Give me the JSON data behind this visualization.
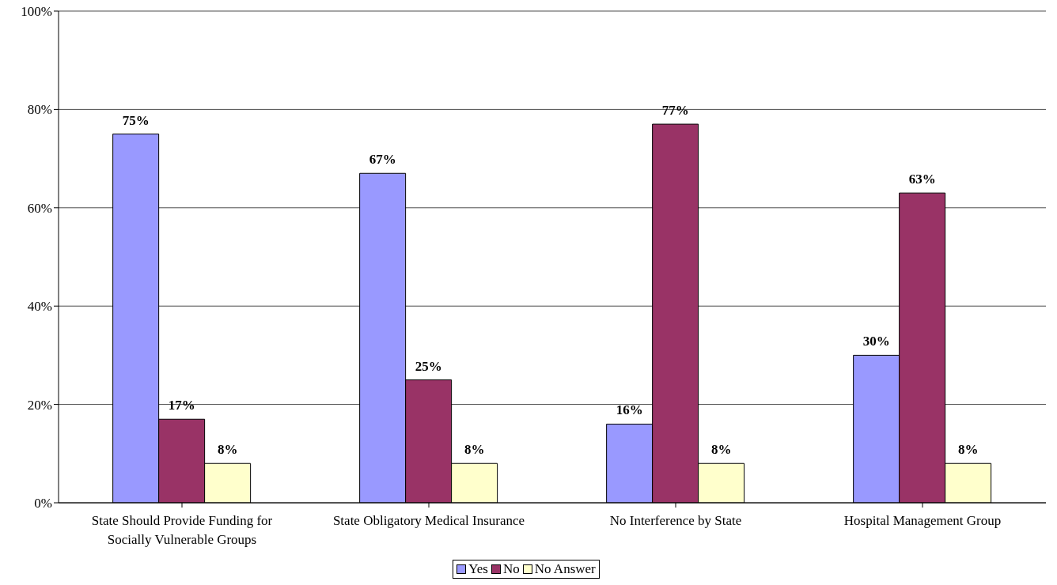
{
  "chart_data": {
    "type": "bar",
    "categories": [
      "State Should Provide Funding for Socially Vulnerable Groups",
      "State Obligatory Medical Insurance",
      "No Interference by State",
      "Hospital Management Group"
    ],
    "series": [
      {
        "name": "Yes",
        "color": "#9999ff",
        "values": [
          75,
          67,
          16,
          30
        ],
        "value_labels": [
          "75%",
          "67%",
          "16%",
          "30%"
        ]
      },
      {
        "name": "No",
        "color": "#993366",
        "values": [
          17,
          25,
          77,
          63
        ],
        "value_labels": [
          "17%",
          "25%",
          "77%",
          "63%"
        ]
      },
      {
        "name": "No Answer",
        "color": "#ffffcc",
        "values": [
          8,
          8,
          8,
          8
        ],
        "value_labels": [
          "8%",
          "8%",
          "8%",
          "8%"
        ]
      }
    ],
    "ylim": [
      0,
      100
    ],
    "yticks": [
      {
        "value": 0,
        "label": "0%"
      },
      {
        "value": 20,
        "label": "20%"
      },
      {
        "value": 40,
        "label": "40%"
      },
      {
        "value": 60,
        "label": "60%"
      },
      {
        "value": 80,
        "label": "80%"
      },
      {
        "value": 100,
        "label": "100%"
      }
    ],
    "grid": "y",
    "legend": "bottom"
  }
}
